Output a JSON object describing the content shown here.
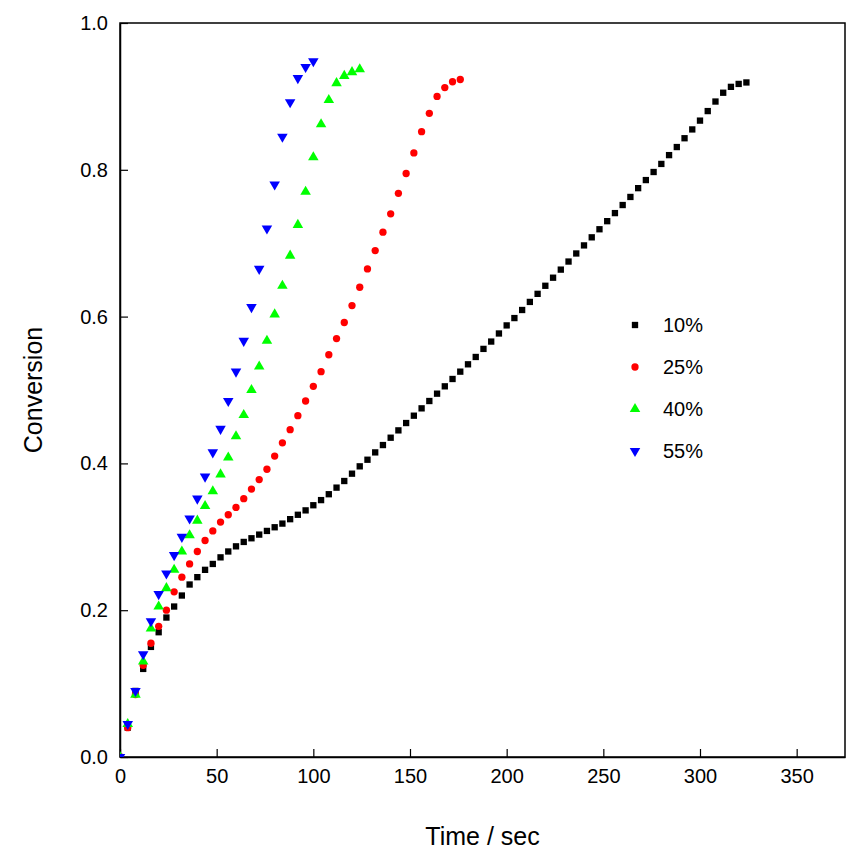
{
  "chart_data": {
    "type": "scatter",
    "x_label": "Time / sec",
    "y_label": "Conversion",
    "xlim": [
      0,
      375
    ],
    "ylim": [
      0,
      1
    ],
    "xticks": [
      0,
      50,
      100,
      150,
      200,
      250,
      300,
      350
    ],
    "yticks": [
      {
        "value": 0,
        "label": "0.0"
      },
      0.2,
      0.4,
      0.6,
      0.8,
      {
        "value": 1,
        "label": "1.0"
      }
    ],
    "legend": "right",
    "series": [
      {
        "name": "10%",
        "color": "#000000",
        "marker": "square",
        "x": [
          0,
          4,
          8,
          12,
          16,
          20,
          24,
          28,
          32,
          36,
          40,
          44,
          48,
          52,
          56,
          60,
          64,
          68,
          72,
          76,
          80,
          84,
          88,
          92,
          96,
          100,
          104,
          108,
          112,
          116,
          120,
          124,
          128,
          132,
          136,
          140,
          144,
          148,
          152,
          156,
          160,
          164,
          168,
          172,
          176,
          180,
          184,
          188,
          192,
          196,
          200,
          204,
          208,
          212,
          216,
          220,
          224,
          228,
          232,
          236,
          240,
          244,
          248,
          252,
          256,
          260,
          264,
          268,
          272,
          276,
          280,
          284,
          288,
          292,
          296,
          300,
          304,
          308,
          312,
          316,
          320,
          324
        ],
        "values": [
          0.0,
          0.04,
          0.09,
          0.12,
          0.15,
          0.17,
          0.19,
          0.205,
          0.22,
          0.235,
          0.245,
          0.255,
          0.263,
          0.272,
          0.28,
          0.287,
          0.293,
          0.298,
          0.303,
          0.308,
          0.313,
          0.318,
          0.324,
          0.33,
          0.336,
          0.343,
          0.35,
          0.358,
          0.367,
          0.376,
          0.386,
          0.396,
          0.405,
          0.415,
          0.425,
          0.435,
          0.445,
          0.455,
          0.465,
          0.475,
          0.485,
          0.495,
          0.505,
          0.515,
          0.525,
          0.535,
          0.545,
          0.556,
          0.566,
          0.577,
          0.588,
          0.598,
          0.609,
          0.62,
          0.631,
          0.642,
          0.653,
          0.664,
          0.675,
          0.686,
          0.697,
          0.708,
          0.719,
          0.73,
          0.741,
          0.752,
          0.763,
          0.775,
          0.786,
          0.797,
          0.808,
          0.82,
          0.831,
          0.843,
          0.855,
          0.867,
          0.88,
          0.893,
          0.905,
          0.913,
          0.917,
          0.919
        ]
      },
      {
        "name": "25%",
        "color": "#ff0000",
        "marker": "circle",
        "x": [
          0,
          4,
          8,
          12,
          16,
          20,
          24,
          28,
          32,
          36,
          40,
          44,
          48,
          52,
          56,
          60,
          64,
          68,
          72,
          76,
          80,
          84,
          88,
          92,
          96,
          100,
          104,
          108,
          112,
          116,
          120,
          124,
          128,
          132,
          136,
          140,
          144,
          148,
          152,
          156,
          160,
          164,
          168,
          172,
          176
        ],
        "values": [
          0.0,
          0.04,
          0.085,
          0.125,
          0.155,
          0.178,
          0.2,
          0.225,
          0.245,
          0.263,
          0.28,
          0.295,
          0.308,
          0.32,
          0.33,
          0.34,
          0.352,
          0.365,
          0.378,
          0.392,
          0.41,
          0.428,
          0.446,
          0.465,
          0.485,
          0.505,
          0.525,
          0.548,
          0.57,
          0.592,
          0.615,
          0.64,
          0.665,
          0.69,
          0.715,
          0.74,
          0.768,
          0.795,
          0.823,
          0.852,
          0.877,
          0.9,
          0.912,
          0.92,
          0.923
        ]
      },
      {
        "name": "40%",
        "color": "#00ff00",
        "marker": "triangle-up",
        "x": [
          0,
          4,
          8,
          12,
          16,
          20,
          24,
          28,
          32,
          36,
          40,
          44,
          48,
          52,
          56,
          60,
          64,
          68,
          72,
          76,
          80,
          84,
          88,
          92,
          96,
          100,
          104,
          108,
          112,
          116,
          120,
          124
        ],
        "values": [
          0.0,
          0.045,
          0.085,
          0.13,
          0.175,
          0.205,
          0.23,
          0.255,
          0.28,
          0.302,
          0.322,
          0.342,
          0.362,
          0.385,
          0.408,
          0.437,
          0.466,
          0.5,
          0.532,
          0.567,
          0.603,
          0.642,
          0.683,
          0.725,
          0.77,
          0.817,
          0.862,
          0.895,
          0.918,
          0.928,
          0.933,
          0.937
        ]
      },
      {
        "name": "55%",
        "color": "#0000ff",
        "marker": "triangle-down",
        "x": [
          0,
          4,
          8,
          12,
          16,
          20,
          24,
          28,
          32,
          36,
          40,
          44,
          48,
          52,
          56,
          60,
          64,
          68,
          72,
          76,
          80,
          84,
          88,
          92,
          96,
          100
        ],
        "values": [
          0.0,
          0.045,
          0.09,
          0.14,
          0.185,
          0.222,
          0.25,
          0.275,
          0.3,
          0.325,
          0.352,
          0.382,
          0.415,
          0.447,
          0.485,
          0.525,
          0.567,
          0.613,
          0.665,
          0.72,
          0.78,
          0.845,
          0.892,
          0.925,
          0.94,
          0.948
        ]
      }
    ]
  }
}
